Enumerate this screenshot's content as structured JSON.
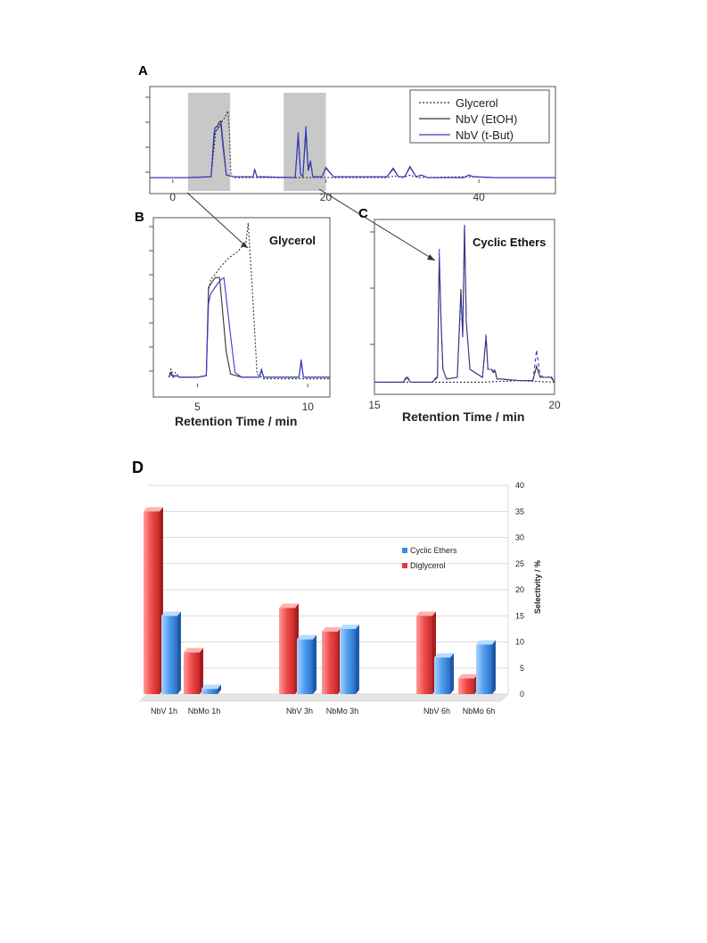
{
  "chart_data": [
    {
      "type": "line",
      "panel": "A",
      "xlim": [
        -3,
        50
      ],
      "x_ticks": [
        "0",
        "20",
        "40"
      ],
      "x_tick_values": [
        0,
        20,
        40
      ],
      "legend": [
        "Glycerol",
        "NbV (EtOH)",
        "NbV (t-But)"
      ],
      "legend_placement": "top-right",
      "shaded_regions": [
        [
          2,
          7.5
        ],
        [
          14.5,
          20
        ]
      ],
      "series": [
        {
          "name": "Glycerol",
          "style": "dotted",
          "color": "#333333",
          "x": [
            -3,
            2,
            5,
            5.6,
            6,
            6.4,
            6.8,
            7.2,
            7.4,
            7.6,
            8,
            12,
            20,
            28,
            29,
            30,
            31,
            32,
            38,
            42,
            50
          ],
          "y": [
            0.02,
            0.02,
            0.03,
            0.55,
            0.62,
            0.67,
            0.72,
            0.8,
            0.55,
            0.05,
            0.02,
            0.02,
            0.02,
            0.02,
            0.04,
            0.02,
            0.05,
            0.02,
            0.03,
            0.02,
            0.02
          ]
        },
        {
          "name": "NbV (EtOH)",
          "style": "solid",
          "color": "#333333",
          "x": [
            -3,
            2,
            5,
            5.5,
            5.8,
            6.1,
            6.3,
            6.6,
            7,
            8,
            10.5,
            10.7,
            11,
            16,
            16.4,
            16.7,
            17,
            17.4,
            17.7,
            18,
            18.3,
            19.5,
            20,
            21,
            28,
            28.8,
            29.5,
            30.3,
            31,
            31.8,
            32.5,
            33.3,
            38,
            38.7,
            39.3,
            42,
            50
          ],
          "y": [
            0.02,
            0.02,
            0.03,
            0.6,
            0.62,
            0.67,
            0.68,
            0.4,
            0.05,
            0.03,
            0.03,
            0.12,
            0.03,
            0.02,
            0.5,
            0.06,
            0.03,
            0.55,
            0.1,
            0.2,
            0.03,
            0.03,
            0.13,
            0.03,
            0.03,
            0.13,
            0.03,
            0.03,
            0.15,
            0.03,
            0.05,
            0.02,
            0.02,
            0.05,
            0.03,
            0.02,
            0.02
          ]
        },
        {
          "name": "NbV (t-But)",
          "style": "solid",
          "color": "#3a3acc",
          "x": [
            -3,
            2,
            5,
            5.4,
            5.8,
            6.1,
            6.3,
            6.6,
            7,
            8,
            10.5,
            10.7,
            11,
            16,
            16.4,
            16.7,
            17,
            17.4,
            17.7,
            18,
            18.3,
            19.5,
            20,
            21,
            28,
            28.8,
            29.5,
            30.3,
            31,
            31.8,
            32.5,
            33.3,
            38,
            38.7,
            39.3,
            42,
            50
          ],
          "y": [
            0.02,
            0.02,
            0.03,
            0.55,
            0.58,
            0.62,
            0.63,
            0.35,
            0.05,
            0.03,
            0.03,
            0.11,
            0.03,
            0.02,
            0.55,
            0.06,
            0.03,
            0.62,
            0.12,
            0.22,
            0.03,
            0.03,
            0.14,
            0.03,
            0.03,
            0.12,
            0.03,
            0.03,
            0.14,
            0.03,
            0.05,
            0.02,
            0.02,
            0.05,
            0.03,
            0.02,
            0.02
          ]
        }
      ]
    },
    {
      "type": "line",
      "panel": "B",
      "title": "Glycerol",
      "xlabel": "Retention Time / min",
      "xlim": [
        3,
        11
      ],
      "x_ticks": [
        "5",
        "10"
      ],
      "x_tick_values": [
        5,
        10
      ],
      "series": [
        {
          "name": "Glycerol",
          "style": "dotted",
          "color": "#333333",
          "x": [
            3.7,
            3.8,
            3.9,
            4,
            4.2,
            5,
            5.4,
            5.5,
            5.6,
            5.8,
            6,
            6.4,
            6.8,
            7,
            7.2,
            7.3,
            7.5,
            7.7,
            8,
            9,
            11
          ],
          "y": [
            0.04,
            0.09,
            0.05,
            0.07,
            0.04,
            0.04,
            0.05,
            0.58,
            0.65,
            0.68,
            0.72,
            0.78,
            0.82,
            0.85,
            0.88,
            1.0,
            0.55,
            0.06,
            0.03,
            0.03,
            0.03
          ]
        },
        {
          "name": "NbV (EtOH)",
          "style": "solid",
          "color": "#333333",
          "x": [
            3.7,
            3.8,
            3.9,
            4,
            4.2,
            5,
            5.4,
            5.5,
            5.6,
            5.8,
            6,
            6.3,
            6.5,
            7,
            7.8,
            7.9,
            8,
            9,
            9.6,
            9.7,
            9.8,
            11
          ],
          "y": [
            0.04,
            0.06,
            0.04,
            0.05,
            0.04,
            0.04,
            0.05,
            0.6,
            0.62,
            0.66,
            0.66,
            0.2,
            0.06,
            0.04,
            0.04,
            0.08,
            0.04,
            0.04,
            0.04,
            0.14,
            0.04,
            0.04
          ]
        },
        {
          "name": "NbV (t-But)",
          "style": "solid",
          "color": "#3a3acc",
          "x": [
            3.7,
            3.8,
            3.9,
            4,
            4.2,
            5,
            5.4,
            5.5,
            5.6,
            5.8,
            6,
            6.2,
            6.5,
            6.7,
            7,
            7.8,
            7.9,
            8,
            9,
            9.6,
            9.7,
            9.8,
            11
          ],
          "y": [
            0.04,
            0.07,
            0.04,
            0.05,
            0.04,
            0.04,
            0.05,
            0.5,
            0.56,
            0.6,
            0.64,
            0.66,
            0.3,
            0.07,
            0.04,
            0.04,
            0.09,
            0.04,
            0.04,
            0.04,
            0.15,
            0.04,
            0.04
          ]
        }
      ]
    },
    {
      "type": "line",
      "panel": "C",
      "title": "Cyclic Ethers",
      "xlabel": "Retention Time / min",
      "xlim": [
        15,
        20
      ],
      "x_ticks": [
        "15",
        "20"
      ],
      "x_tick_values": [
        15,
        20
      ],
      "series": [
        {
          "name": "Glycerol",
          "style": "dotted",
          "color": "#333333",
          "x": [
            15,
            16,
            17,
            18,
            19,
            20
          ],
          "y": [
            0.02,
            0.02,
            0.02,
            0.02,
            0.03,
            0.02
          ]
        },
        {
          "name": "NbV (EtOH)",
          "style": "solid",
          "color": "#333333",
          "x": [
            15,
            15.8,
            15.9,
            16,
            16.6,
            16.75,
            16.8,
            16.85,
            16.9,
            17.0,
            17.3,
            17.4,
            17.45,
            17.5,
            17.55,
            17.65,
            18.0,
            18.1,
            18.15,
            18.25,
            18.3,
            18.35,
            18.4,
            18.5,
            19.0,
            19.4,
            19.5,
            19.6,
            19.8,
            19.9,
            20.0
          ],
          "y": [
            0.02,
            0.02,
            0.05,
            0.02,
            0.02,
            0.05,
            0.8,
            0.4,
            0.1,
            0.04,
            0.05,
            0.6,
            0.3,
            1.0,
            0.4,
            0.1,
            0.05,
            0.3,
            0.1,
            0.1,
            0.08,
            0.09,
            0.04,
            0.04,
            0.03,
            0.03,
            0.12,
            0.05,
            0.05,
            0.05,
            0.02
          ]
        },
        {
          "name": "NbV (t-But)",
          "style": "dashed",
          "color": "#3a3acc",
          "x": [
            15,
            15.8,
            15.9,
            16,
            16.6,
            16.75,
            16.8,
            16.85,
            16.9,
            17.0,
            17.3,
            17.4,
            17.45,
            17.5,
            17.55,
            17.65,
            18.0,
            18.1,
            18.15,
            18.25,
            18.3,
            18.35,
            18.4,
            18.5,
            19.0,
            19.4,
            19.5,
            19.6,
            19.8,
            19.9,
            20.0
          ],
          "y": [
            0.02,
            0.02,
            0.06,
            0.02,
            0.02,
            0.06,
            0.85,
            0.4,
            0.1,
            0.04,
            0.05,
            0.55,
            0.3,
            1.0,
            0.4,
            0.1,
            0.05,
            0.32,
            0.1,
            0.1,
            0.09,
            0.1,
            0.04,
            0.04,
            0.03,
            0.03,
            0.22,
            0.06,
            0.05,
            0.06,
            0.02
          ]
        }
      ]
    },
    {
      "type": "bar",
      "panel": "D",
      "categories": [
        "NbV 1h",
        "NbMo 1h",
        "NbV 3h",
        "NbMo 3h",
        "NbV 6h",
        "NbMo 6h"
      ],
      "ylabel": "Selectivity / %",
      "ylim": [
        0,
        40
      ],
      "y_ticks": [
        "0",
        "5",
        "10",
        "15",
        "20",
        "25",
        "30",
        "35",
        "40"
      ],
      "grid": true,
      "legend_placement": "center-right",
      "series": [
        {
          "name": "Diglycerol",
          "color": "#e83c3c",
          "values": [
            35,
            8,
            16.5,
            12,
            15,
            3
          ]
        },
        {
          "name": "Cyclic Ethers",
          "color": "#3a8fe0",
          "values": [
            15,
            1,
            10.5,
            12.5,
            7,
            9.5
          ]
        }
      ]
    }
  ],
  "panels": {
    "a": {
      "letter": "A"
    },
    "b": {
      "letter": "B"
    },
    "c": {
      "letter": "C"
    },
    "d": {
      "letter": "D"
    }
  }
}
